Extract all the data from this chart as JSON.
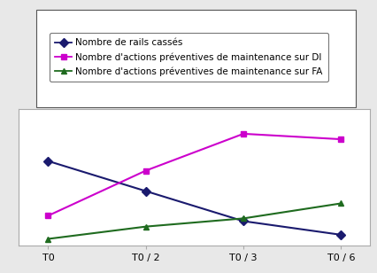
{
  "x_labels": [
    "T0",
    "T0 / 2",
    "T0 / 3",
    "T0 / 6"
  ],
  "x_values": [
    0,
    1,
    2,
    3
  ],
  "series": [
    {
      "label": "Nombre de rails cassés",
      "color": "#1a1a6e",
      "marker": "D",
      "markersize": 5,
      "values": [
        0.62,
        0.4,
        0.18,
        0.08
      ]
    },
    {
      "label": "Nombre d'actions préventives de maintenance sur DI",
      "color": "#cc00cc",
      "marker": "s",
      "markersize": 5,
      "values": [
        0.22,
        0.55,
        0.82,
        0.78
      ]
    },
    {
      "label": "Nombre d'actions préventives de maintenance sur FA",
      "color": "#1f6b1f",
      "marker": "^",
      "markersize": 5,
      "values": [
        0.05,
        0.14,
        0.2,
        0.31
      ]
    }
  ],
  "ylim": [
    0,
    1.0
  ],
  "legend_fontsize": 7.5,
  "tick_fontsize": 8,
  "background_color": "#e8e8e8",
  "plot_bg_color": "#ffffff",
  "grid_color": "#c0c0c0",
  "border_color": "#aaaaaa"
}
